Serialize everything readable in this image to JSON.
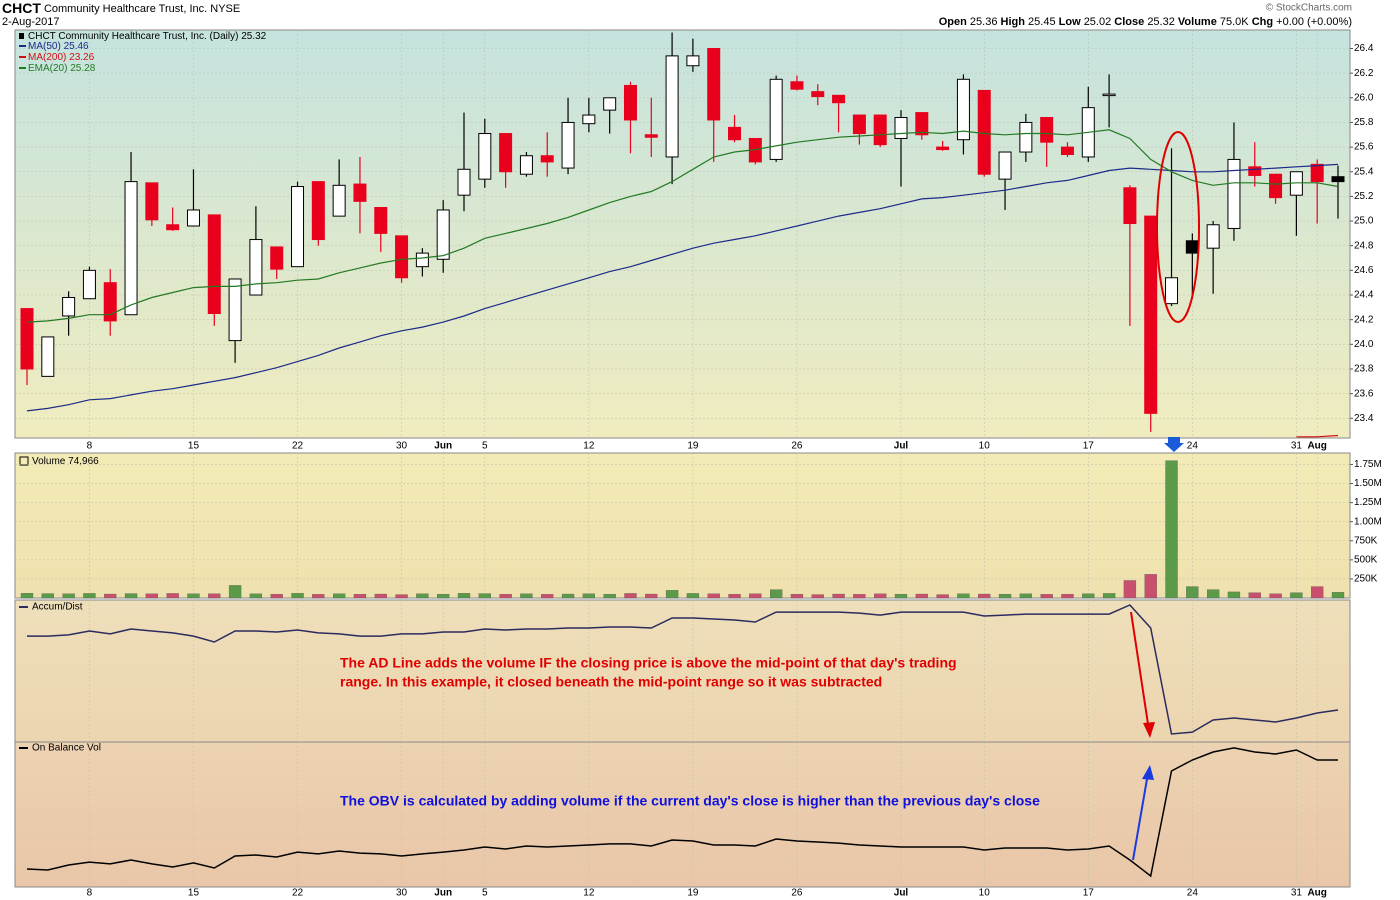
{
  "chart_data": [
    {
      "type": "candlestick",
      "title": "CHCT",
      "subtitle": "Community Healthcare Trust, Inc.",
      "exchange": "NYSE",
      "date": "2-Aug-2017",
      "source": "© StockCharts.com",
      "interval": "(Daily)",
      "quote": {
        "labels": [
          "Open",
          "High",
          "Low",
          "Close",
          "Volume",
          "Chg"
        ],
        "volume": "75.0K",
        "change": "+0.00 (+0.00%)"
      },
      "categories": [
        null,
        null,
        null,
        "8",
        null,
        null,
        null,
        null,
        "15",
        null,
        null,
        null,
        null,
        "22",
        null,
        null,
        null,
        null,
        "30",
        null,
        "Jun",
        null,
        "5",
        null,
        null,
        null,
        null,
        "12",
        null,
        null,
        null,
        null,
        "19",
        null,
        null,
        null,
        null,
        "26",
        null,
        null,
        null,
        null,
        "Jul",
        null,
        null,
        null,
        "10",
        null,
        null,
        null,
        null,
        "17",
        null,
        null,
        null,
        null,
        "24",
        null,
        null,
        null,
        null,
        "31",
        "Aug",
        null
      ],
      "open": [
        24.29,
        23.74,
        24.23,
        24.37,
        24.5,
        24.24,
        25.31,
        24.97,
        24.96,
        25.05,
        24.03,
        24.4,
        24.79,
        24.63,
        25.32,
        25.04,
        25.3,
        25.11,
        24.88,
        24.63,
        24.69,
        25.21,
        25.34,
        25.71,
        25.38,
        25.53,
        25.43,
        25.79,
        25.9,
        26.1,
        25.7,
        25.52,
        26.26,
        26.4,
        25.76,
        25.67,
        25.5,
        26.13,
        26.05,
        26.02,
        25.86,
        25.86,
        25.67,
        25.88,
        25.6,
        25.66,
        26.06,
        25.34,
        25.56,
        25.84,
        25.6,
        25.52,
        26.02,
        25.27,
        25.04,
        24.33,
        24.84,
        24.78,
        24.94,
        25.44,
        25.38,
        25.21,
        25.46,
        25.36
      ],
      "high": [
        24.29,
        24.06,
        24.43,
        24.63,
        24.61,
        25.56,
        25.31,
        25.11,
        25.42,
        25.05,
        24.53,
        25.12,
        24.79,
        25.32,
        25.32,
        25.5,
        25.52,
        25.11,
        24.88,
        24.78,
        25.17,
        25.88,
        25.83,
        25.71,
        25.56,
        25.72,
        26.0,
        26.0,
        26.0,
        26.13,
        26.0,
        26.53,
        26.48,
        26.4,
        25.86,
        25.67,
        26.18,
        26.18,
        26.11,
        26.02,
        25.86,
        25.86,
        25.9,
        25.88,
        25.65,
        26.19,
        26.06,
        25.56,
        25.87,
        25.84,
        25.64,
        26.09,
        26.19,
        25.29,
        25.04,
        25.59,
        24.9,
        25.0,
        25.8,
        25.64,
        25.38,
        25.4,
        25.5,
        25.45
      ],
      "low": [
        23.67,
        23.74,
        24.07,
        24.37,
        24.07,
        24.24,
        24.96,
        24.92,
        24.96,
        24.15,
        23.85,
        24.4,
        24.53,
        24.63,
        24.8,
        25.04,
        24.9,
        24.75,
        24.5,
        24.55,
        24.58,
        25.08,
        25.27,
        25.27,
        25.36,
        25.36,
        25.38,
        25.72,
        25.71,
        25.55,
        25.52,
        25.3,
        26.21,
        25.48,
        25.64,
        25.46,
        25.48,
        26.06,
        25.94,
        25.72,
        25.62,
        25.6,
        25.28,
        25.66,
        25.57,
        25.54,
        25.36,
        25.09,
        25.48,
        25.44,
        25.52,
        25.48,
        25.76,
        24.15,
        23.29,
        24.31,
        24.37,
        24.41,
        24.84,
        25.28,
        25.14,
        24.88,
        24.98,
        25.02
      ],
      "close": [
        23.8,
        24.06,
        24.38,
        24.6,
        24.19,
        25.32,
        25.01,
        24.93,
        25.09,
        24.25,
        24.53,
        24.85,
        24.61,
        25.28,
        24.85,
        25.29,
        25.16,
        24.9,
        24.54,
        24.74,
        25.09,
        25.42,
        25.71,
        25.4,
        25.53,
        25.48,
        25.8,
        25.86,
        26.0,
        25.82,
        25.68,
        26.34,
        26.34,
        25.82,
        25.66,
        25.48,
        26.15,
        26.07,
        26.01,
        25.96,
        25.71,
        25.62,
        25.84,
        25.7,
        25.58,
        26.15,
        25.38,
        25.56,
        25.8,
        25.64,
        25.54,
        25.92,
        26.03,
        24.98,
        23.44,
        24.54,
        24.74,
        24.97,
        25.5,
        25.37,
        25.19,
        25.4,
        25.32,
        25.32
      ],
      "up_color": "#ffffff",
      "down_color": "#e8001c",
      "weak_down_color": "#000000",
      "series": [
        {
          "name": "MA(50)",
          "color": "#1c2a8a",
          "values": [
            23.46,
            23.48,
            23.51,
            23.55,
            23.56,
            23.59,
            23.62,
            23.64,
            23.67,
            23.7,
            23.73,
            23.77,
            23.81,
            23.86,
            23.91,
            23.97,
            24.02,
            24.07,
            24.11,
            24.14,
            24.18,
            24.23,
            24.29,
            24.34,
            24.39,
            24.44,
            24.49,
            24.54,
            24.59,
            24.63,
            24.68,
            24.73,
            24.78,
            24.82,
            24.85,
            24.88,
            24.92,
            24.96,
            25.0,
            25.04,
            25.07,
            25.1,
            25.14,
            25.18,
            25.19,
            25.21,
            25.23,
            25.25,
            25.28,
            25.31,
            25.33,
            25.37,
            25.41,
            25.43,
            25.42,
            25.41,
            25.4,
            25.4,
            25.41,
            25.42,
            25.43,
            25.44,
            25.45,
            25.46
          ]
        },
        {
          "name": "MA(200)",
          "color": "#d01010",
          "values": [
            null,
            null,
            null,
            null,
            null,
            null,
            null,
            null,
            null,
            null,
            null,
            null,
            null,
            null,
            null,
            null,
            null,
            null,
            null,
            null,
            null,
            null,
            null,
            null,
            null,
            null,
            null,
            null,
            null,
            null,
            null,
            null,
            null,
            null,
            null,
            null,
            null,
            null,
            null,
            null,
            null,
            null,
            null,
            null,
            null,
            null,
            null,
            null,
            null,
            null,
            null,
            null,
            null,
            null,
            null,
            null,
            null,
            null,
            null,
            null,
            null,
            23.25,
            23.25,
            23.26
          ]
        },
        {
          "name": "EMA(20)",
          "color": "#237a23",
          "values": [
            24.18,
            24.19,
            24.21,
            24.24,
            24.24,
            24.32,
            24.38,
            24.42,
            24.46,
            24.47,
            24.47,
            24.49,
            24.5,
            24.52,
            24.53,
            24.58,
            24.62,
            24.66,
            24.69,
            24.7,
            24.72,
            24.78,
            24.86,
            24.9,
            24.94,
            24.98,
            25.03,
            25.09,
            25.15,
            25.2,
            25.24,
            25.32,
            25.42,
            25.52,
            25.56,
            25.58,
            25.61,
            25.64,
            25.66,
            25.68,
            25.69,
            25.7,
            25.71,
            25.72,
            25.71,
            25.73,
            25.71,
            25.7,
            25.71,
            25.71,
            25.7,
            25.72,
            25.74,
            25.67,
            25.5,
            25.4,
            25.33,
            25.29,
            25.31,
            25.31,
            25.3,
            25.31,
            25.31,
            25.28
          ]
        }
      ],
      "ylim": [
        23.24,
        26.55
      ],
      "yticks": [
        23.4,
        23.6,
        23.8,
        {
          "value": 24,
          "label": "24.0"
        },
        24.2,
        24.4,
        24.6,
        24.8,
        {
          "value": 25,
          "label": "25.0"
        },
        25.2,
        25.4,
        25.6,
        25.8,
        {
          "value": 26,
          "label": "26.0"
        },
        26.2,
        26.4
      ],
      "grid": true
    },
    {
      "type": "bar",
      "name": "Volume",
      "last_value_label": "74,966",
      "up_color": "#5b9a48",
      "down_color": "#c9506c",
      "values": [
        62000,
        58000,
        55000,
        60000,
        52000,
        58000,
        55000,
        60000,
        55000,
        56000,
        165000,
        55000,
        50000,
        62000,
        48000,
        56000,
        50000,
        52000,
        45000,
        55000,
        50000,
        62000,
        58000,
        50000,
        55000,
        48000,
        52000,
        56000,
        50000,
        60000,
        52000,
        100000,
        60000,
        55000,
        50000,
        56000,
        110000,
        50000,
        45000,
        52000,
        48000,
        55000,
        50000,
        52000,
        45000,
        55000,
        52000,
        50000,
        55000,
        48000,
        50000,
        56000,
        60000,
        230000,
        310000,
        1800000,
        150000,
        110000,
        80000,
        70000,
        55000,
        70000,
        150000,
        74966
      ],
      "ylim": [
        0,
        1900000
      ],
      "yticks": [
        {
          "value": 250000,
          "label": "250K"
        },
        {
          "value": 500000,
          "label": "500K"
        },
        {
          "value": 750000,
          "label": "750K"
        },
        {
          "value": 1000000,
          "label": "1.00M"
        },
        {
          "value": 1250000,
          "label": "1.25M"
        },
        {
          "value": 1500000,
          "label": "1.50M"
        },
        {
          "value": 1750000,
          "label": "1.75M"
        }
      ],
      "grid": true
    },
    {
      "type": "line",
      "name": "Accum/Dist",
      "color": "#2b2b5e",
      "values": [
        74.6,
        74.6,
        75.4,
        78.2,
        76.1,
        79.6,
        78.2,
        76.8,
        74.6,
        70.4,
        78.2,
        78.2,
        77.5,
        78.9,
        76.8,
        76.1,
        74.6,
        74.6,
        76.1,
        76.1,
        77.5,
        77.5,
        79.6,
        78.9,
        79.6,
        79.6,
        80.3,
        80.3,
        81.0,
        81.0,
        80.3,
        87.3,
        87.3,
        86.6,
        85.9,
        84.5,
        91.5,
        91.5,
        91.5,
        91.5,
        90.8,
        89.4,
        91.5,
        91.5,
        91.5,
        91.5,
        88.7,
        89.4,
        90.1,
        90.1,
        90.1,
        90.1,
        90.1,
        96.5,
        80.3,
        5.6,
        7.0,
        15.5,
        16.9,
        15.5,
        14.1,
        16.9,
        20.4,
        22.5
      ],
      "ylim": [
        0,
        100
      ],
      "annotation": [
        "The AD Line adds the volume IF the closing price is above the mid-point of that day's trading",
        "range.  In this example, it closed beneath the mid-point range so it was subtracted"
      ]
    },
    {
      "type": "line",
      "name": "On Balance Vol",
      "color": "#000000",
      "values": [
        12.4,
        11.7,
        15.2,
        17.2,
        15.9,
        18.6,
        15.9,
        13.8,
        16.6,
        13.1,
        21.4,
        22.1,
        20.7,
        24.1,
        22.8,
        24.8,
        23.4,
        22.8,
        21.4,
        22.8,
        24.1,
        25.5,
        27.6,
        26.2,
        28.3,
        27.6,
        28.3,
        29.0,
        29.7,
        29.7,
        28.3,
        32.4,
        31.7,
        29.0,
        29.0,
        28.3,
        33.1,
        31.7,
        31.0,
        30.3,
        29.0,
        28.3,
        27.6,
        27.6,
        27.6,
        27.6,
        25.5,
        26.9,
        26.9,
        26.9,
        25.5,
        26.2,
        28.3,
        18.6,
        7.6,
        80.0,
        87.6,
        93.1,
        95.9,
        93.1,
        91.7,
        94.5,
        87.6,
        87.6
      ],
      "ylim": [
        0,
        100
      ],
      "annotation": "The OBV is calculated by adding volume if the current day's close is higher than the previous day's close"
    }
  ]
}
